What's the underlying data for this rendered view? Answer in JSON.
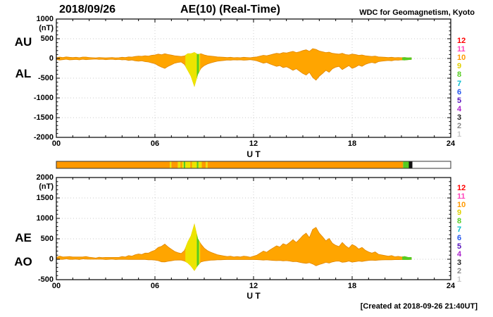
{
  "header": {
    "date": "2018/09/26",
    "title": "AE(10) (Real-Time)",
    "source": "WDC for Geomagnetism, Kyoto"
  },
  "footer": {
    "created": "[Created at 2018-09-26 21:40UT]"
  },
  "legend": {
    "station_numbers": [
      12,
      11,
      10,
      9,
      8,
      7,
      6,
      5,
      4,
      3,
      2,
      1
    ]
  },
  "panels": {
    "top": {
      "label_upper": "AU",
      "label_lower": "AL",
      "unit": "(nT)",
      "ylim": [
        -2000,
        1000
      ],
      "ytick_values": [
        1000,
        500,
        0,
        -500,
        -1000,
        -1500,
        -2000
      ],
      "ytick_labels": [
        "1000",
        "500",
        "0",
        "-500",
        "-1000",
        "-1500",
        "-2000"
      ],
      "xtick_values": [
        0,
        6,
        12,
        18,
        24
      ],
      "xtick_labels": [
        "00",
        "06",
        "12",
        "18",
        "24"
      ],
      "xlabel": "U T"
    },
    "bottom": {
      "label_upper": "AE",
      "label_lower": "AO",
      "unit": "(nT)",
      "ylim": [
        -500,
        2000
      ],
      "ytick_values": [
        2000,
        1500,
        1000,
        500,
        0,
        -500
      ],
      "ytick_labels": [
        "2000",
        "1500",
        "1000",
        "500",
        "0",
        "-500"
      ],
      "xtick_values": [
        0,
        6,
        12,
        18,
        24
      ],
      "xtick_labels": [
        "00",
        "06",
        "12",
        "18",
        "24"
      ],
      "xlabel": "U T"
    }
  },
  "chart_data": {
    "type": "area",
    "title": "AE(10) (Real-Time) 2018/09/26",
    "xlabel": "U T",
    "ylabel": "(nT)",
    "xlim": [
      0,
      24
    ],
    "x_start_hour": 0,
    "x_step_hour": 0.2,
    "fill_color": "#ffa500",
    "stroke_color": "#e08600",
    "overlays": [
      {
        "start_hour": 7.85,
        "end_hour": 8.75,
        "color": "#ede400"
      },
      {
        "start_hour": 8.55,
        "end_hour": 8.68,
        "color": "#55cc22"
      },
      {
        "start_hour": 21.05,
        "end_hour": 21.65,
        "color": "#55cc22"
      }
    ],
    "panels": [
      {
        "name": "AU/AL",
        "ylim": [
          -2000,
          1000
        ],
        "series": [
          {
            "name": "AU",
            "values": [
              20,
              35,
              25,
              40,
              30,
              25,
              30,
              20,
              35,
              35,
              25,
              20,
              15,
              25,
              20,
              15,
              20,
              25,
              15,
              20,
              30,
              25,
              40,
              35,
              50,
              60,
              55,
              70,
              60,
              80,
              90,
              110,
              95,
              120,
              100,
              85,
              70,
              60,
              50,
              65,
              120,
              120,
              150,
              100,
              120,
              90,
              70,
              60,
              50,
              40,
              35,
              30,
              25,
              30,
              20,
              25,
              20,
              30,
              25,
              20,
              30,
              40,
              60,
              80,
              70,
              90,
              110,
              130,
              120,
              150,
              140,
              160,
              180,
              150,
              170,
              200,
              220,
              180,
              250,
              230,
              190,
              170,
              150,
              160,
              130,
              120,
              110,
              130,
              100,
              90,
              110,
              100,
              80,
              90,
              70,
              60,
              50,
              60,
              40,
              35,
              30,
              25,
              30,
              20,
              25,
              20,
              25,
              15,
              20
            ]
          },
          {
            "name": "AL",
            "values": [
              -25,
              -40,
              -30,
              -20,
              -35,
              -30,
              -25,
              -35,
              -20,
              -30,
              -25,
              -20,
              -15,
              -25,
              -20,
              -30,
              -25,
              -20,
              -30,
              -25,
              -35,
              -30,
              -50,
              -40,
              -60,
              -70,
              -60,
              -80,
              -90,
              -110,
              -130,
              -180,
              -220,
              -250,
              -200,
              -160,
              -120,
              -100,
              -90,
              -150,
              -300,
              -450,
              -700,
              -400,
              -250,
              -180,
              -140,
              -110,
              -90,
              -70,
              -60,
              -50,
              -40,
              -45,
              -35,
              -40,
              -35,
              -45,
              -40,
              -30,
              -45,
              -60,
              -90,
              -120,
              -100,
              -140,
              -170,
              -200,
              -180,
              -230,
              -210,
              -250,
              -300,
              -260,
              -320,
              -380,
              -420,
              -350,
              -480,
              -550,
              -450,
              -380,
              -300,
              -350,
              -260,
              -220,
              -200,
              -280,
              -230,
              -180,
              -250,
              -220,
              -170,
              -200,
              -150,
              -120,
              -100,
              -120,
              -80,
              -70,
              -60,
              -50,
              -60,
              -40,
              -45,
              -35,
              -40,
              -30,
              -25
            ]
          }
        ]
      },
      {
        "name": "AE/AO",
        "ylim": [
          -500,
          2000
        ],
        "series": [
          {
            "name": "AE",
            "values": [
              45,
              75,
              55,
              60,
              65,
              55,
              55,
              55,
              55,
              65,
              50,
              40,
              30,
              50,
              40,
              45,
              45,
              45,
              45,
              45,
              65,
              55,
              90,
              75,
              110,
              130,
              115,
              150,
              150,
              190,
              220,
              290,
              315,
              370,
              300,
              245,
              190,
              160,
              140,
              215,
              420,
              570,
              850,
              500,
              370,
              270,
              210,
              170,
              140,
              110,
              95,
              80,
              65,
              75,
              55,
              65,
              55,
              75,
              65,
              50,
              75,
              100,
              150,
              200,
              170,
              230,
              280,
              330,
              300,
              380,
              350,
              410,
              480,
              410,
              490,
              580,
              640,
              530,
              730,
              780,
              640,
              550,
              450,
              510,
              390,
              340,
              310,
              410,
              330,
              270,
              360,
              320,
              250,
              290,
              220,
              180,
              150,
              180,
              120,
              105,
              90,
              75,
              90,
              60,
              70,
              55,
              65,
              45,
              45
            ]
          },
          {
            "name": "AO",
            "values": [
              -3,
              -3,
              -3,
              10,
              -3,
              -3,
              3,
              -8,
              8,
              3,
              0,
              0,
              0,
              0,
              0,
              -8,
              -3,
              3,
              -8,
              -3,
              -3,
              -3,
              -5,
              -3,
              -5,
              -5,
              -3,
              -5,
              -15,
              -15,
              -20,
              -35,
              -63,
              -65,
              -50,
              -38,
              -25,
              -20,
              -20,
              -43,
              -90,
              -165,
              -275,
              -150,
              -65,
              -45,
              -35,
              -25,
              -20,
              -15,
              -13,
              -10,
              -8,
              -8,
              -8,
              -8,
              -8,
              -8,
              -8,
              -5,
              -8,
              -10,
              -15,
              -20,
              -15,
              -25,
              -30,
              -35,
              -30,
              -40,
              -35,
              -45,
              -60,
              -55,
              -75,
              -90,
              -100,
              -85,
              -115,
              -160,
              -130,
              -105,
              -75,
              -95,
              -65,
              -50,
              -45,
              -75,
              -65,
              -45,
              -70,
              -60,
              -45,
              -55,
              -40,
              -30,
              -25,
              -30,
              -20,
              -18,
              -15,
              -13,
              -15,
              -10,
              -10,
              -8,
              -8,
              -8,
              -3
            ]
          }
        ]
      }
    ],
    "station_colors": {
      "12": "#ff0000",
      "11": "#ff44bb",
      "10": "#ff9900",
      "9": "#e0d000",
      "8": "#55cc22",
      "7": "#00bbcc",
      "6": "#2255ee",
      "5": "#5511bb",
      "4": "#aa22cc",
      "3": "#222222",
      "2": "#888888",
      "1": "#c8c8c8"
    },
    "station_bar_segments": [
      {
        "start_hour": 0.0,
        "end_hour": 6.9,
        "color": "#ff9900"
      },
      {
        "start_hour": 6.9,
        "end_hour": 7.0,
        "color": "#ede400"
      },
      {
        "start_hour": 7.0,
        "end_hour": 7.4,
        "color": "#ff9900"
      },
      {
        "start_hour": 7.4,
        "end_hour": 7.55,
        "color": "#ede400"
      },
      {
        "start_hour": 7.55,
        "end_hour": 7.65,
        "color": "#ff9900"
      },
      {
        "start_hour": 7.65,
        "end_hour": 7.75,
        "color": "#ede400"
      },
      {
        "start_hour": 7.75,
        "end_hour": 7.85,
        "color": "#55cc22"
      },
      {
        "start_hour": 7.85,
        "end_hour": 8.15,
        "color": "#ede400"
      },
      {
        "start_hour": 8.15,
        "end_hour": 8.25,
        "color": "#ff9900"
      },
      {
        "start_hour": 8.25,
        "end_hour": 8.55,
        "color": "#ede400"
      },
      {
        "start_hour": 8.55,
        "end_hour": 8.65,
        "color": "#55cc22"
      },
      {
        "start_hour": 8.65,
        "end_hour": 8.85,
        "color": "#ede400"
      },
      {
        "start_hour": 8.85,
        "end_hour": 9.1,
        "color": "#ff9900"
      },
      {
        "start_hour": 9.1,
        "end_hour": 9.2,
        "color": "#ede400"
      },
      {
        "start_hour": 9.2,
        "end_hour": 21.1,
        "color": "#ff9900"
      },
      {
        "start_hour": 21.1,
        "end_hour": 21.45,
        "color": "#55cc22"
      },
      {
        "start_hour": 21.45,
        "end_hour": 21.67,
        "color": "#111111"
      },
      {
        "start_hour": 21.67,
        "end_hour": 24.0,
        "color": "#ffffff"
      }
    ]
  }
}
